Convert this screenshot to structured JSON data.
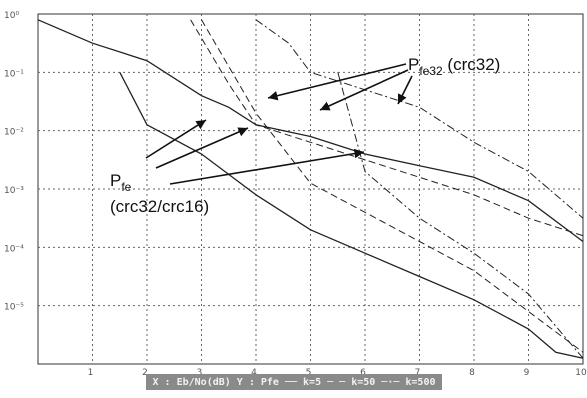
{
  "chart_data": {
    "type": "line",
    "title": "",
    "xlabel": "",
    "ylabel": "",
    "log_y": true,
    "grid": true,
    "x_ticks": [
      "1",
      "2",
      "3",
      "4",
      "5",
      "6",
      "7",
      "8",
      "9",
      "10"
    ],
    "y_ticks": [
      "10⁰",
      "10⁻¹",
      "10⁻²",
      "10⁻³",
      "10⁻⁴",
      "10⁻⁵"
    ],
    "xlim": [
      0,
      10
    ],
    "ylim_exp": [
      -6,
      0
    ],
    "series": [
      {
        "style": "solid",
        "x": [
          0,
          1,
          2,
          3,
          3.5,
          4,
          5,
          6,
          7,
          8,
          9,
          10
        ],
        "y_exp": [
          -0.1,
          -0.5,
          -0.8,
          -1.4,
          -1.6,
          -1.9,
          -2.1,
          -2.4,
          -2.6,
          -2.8,
          -3.2,
          -3.9
        ]
      },
      {
        "style": "dashed",
        "x": [
          2.8,
          3.5,
          4,
          5,
          6,
          7,
          8,
          9,
          10
        ],
        "y_exp": [
          -0.1,
          -1.2,
          -1.9,
          -2.2,
          -2.5,
          -2.8,
          -3.1,
          -3.5,
          -3.8
        ]
      },
      {
        "style": "dashdot",
        "x": [
          4,
          4.6,
          5,
          6,
          7,
          8,
          9,
          10
        ],
        "y_exp": [
          -0.1,
          -0.5,
          -1.0,
          -1.3,
          -1.6,
          -2.2,
          -2.7,
          -3.5
        ]
      },
      {
        "style": "solid",
        "x": [
          1.5,
          2,
          3,
          4,
          5,
          6,
          7,
          8,
          9,
          9.5,
          10
        ],
        "y_exp": [
          -1.0,
          -1.9,
          -2.4,
          -3.1,
          -3.7,
          -4.1,
          -4.5,
          -4.9,
          -5.4,
          -5.8,
          -5.9
        ]
      },
      {
        "style": "dashed",
        "x": [
          3,
          4,
          5,
          6,
          7,
          8,
          9,
          10
        ],
        "y_exp": [
          -0.1,
          -1.7,
          -2.9,
          -3.4,
          -3.9,
          -4.4,
          -5.1,
          -5.8
        ]
      },
      {
        "style": "dashdot",
        "x": [
          5.5,
          6,
          7,
          8,
          9,
          10
        ],
        "y_exp": [
          -1.0,
          -2.7,
          -3.5,
          -4.1,
          -4.8,
          -5.9
        ]
      }
    ],
    "annotations": [
      {
        "main": "P",
        "sub": "fe32",
        "tail": " (crc32)"
      },
      {
        "main": "P",
        "sub": "fe",
        "tail": ""
      },
      {
        "main": "(crc32/crc16)",
        "sub": "",
        "tail": ""
      }
    ],
    "legend": "X : Eb/No(dB)  Y : Pfe  ── k=5  ─ ─ k=50  ─·─ k=500"
  }
}
